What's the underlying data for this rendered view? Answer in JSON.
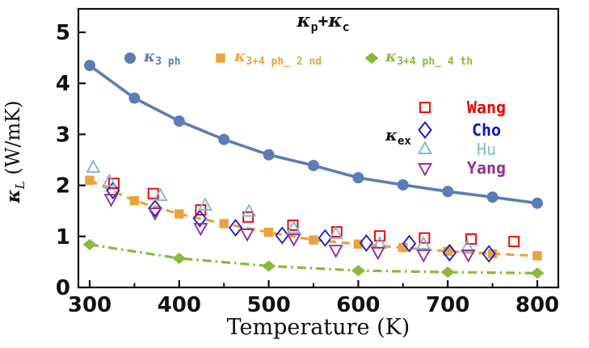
{
  "title": {
    "k1": "κ",
    "sub1": "p",
    "plus": "+",
    "k2": "κ",
    "sub2": "c"
  },
  "axes": {
    "x_label": "Temperature (K)",
    "y_symbol": "κ",
    "y_sub": "L",
    "y_units": " (W/mK)"
  },
  "legend_computed": [
    {
      "symbol": "κ",
      "sub": "3 ph",
      "marker": "circle",
      "color": "#5b7db5"
    },
    {
      "symbol": "κ",
      "sub": "3+4 ph_ 2 nd",
      "marker": "square",
      "color": "#e8a33c"
    },
    {
      "symbol": "κ",
      "sub": "3+4 ph_ 4 th",
      "marker": "diamond",
      "color": "#8db83c"
    }
  ],
  "legend_experimental": {
    "symbol": "κ",
    "sub": "ex",
    "entries": [
      {
        "name": "Wang",
        "marker": "square-open",
        "color": "#ee0000",
        "weight": "bold"
      },
      {
        "name": "Cho",
        "marker": "diamond-open",
        "color": "#1414cc",
        "weight": "bold"
      },
      {
        "name": "Hu",
        "marker": "triangle-up-open",
        "color": "#85b7d4",
        "weight": "normal"
      },
      {
        "name": "Yang",
        "marker": "triangle-down-open",
        "color": "#992d99",
        "weight": "bold"
      }
    ]
  },
  "chart_data": {
    "type": "line",
    "title": "κp+κc",
    "xlabel": "Temperature (K)",
    "ylabel": "κL (W/mK)",
    "xlim": [
      287,
      824
    ],
    "ylim": [
      0,
      5.45
    ],
    "x_major_ticks": [
      300,
      400,
      500,
      600,
      700,
      800
    ],
    "x_minor_ticks": [
      350,
      450,
      550,
      650,
      750
    ],
    "y_major_ticks": [
      0,
      1,
      2,
      3,
      4,
      5
    ],
    "grid": false,
    "legend_position": "inside-top",
    "series": [
      {
        "name": "κ3+4 ph_ 4 th",
        "kind": "line+markers",
        "marker": "diamond",
        "line": "dashdot",
        "color": "#8db83c",
        "x": [
          300,
          400,
          500,
          600,
          700,
          800
        ],
        "y": [
          0.84,
          0.57,
          0.42,
          0.33,
          0.3,
          0.28
        ]
      },
      {
        "name": "κ3+4 ph_ 2 nd",
        "kind": "line+markers",
        "marker": "square",
        "line": "dashed",
        "color": "#e8a33c",
        "x": [
          300,
          350,
          400,
          450,
          500,
          550,
          600,
          650,
          700,
          750,
          800
        ],
        "y": [
          2.1,
          1.7,
          1.44,
          1.25,
          1.08,
          0.93,
          0.85,
          0.78,
          0.71,
          0.66,
          0.62
        ]
      },
      {
        "name": "κ3 ph",
        "kind": "line+markers",
        "marker": "circle",
        "line": "solid",
        "color": "#5b7db5",
        "x": [
          300,
          350,
          400,
          450,
          500,
          550,
          600,
          650,
          700,
          750,
          800
        ],
        "y": [
          4.35,
          3.71,
          3.26,
          2.9,
          2.6,
          2.39,
          2.15,
          2.01,
          1.88,
          1.77,
          1.65
        ]
      },
      {
        "name": "Wang",
        "kind": "scatter",
        "marker": "square-open",
        "color": "#ee0000",
        "x": [
          327,
          371,
          424,
          477,
          527,
          576,
          624,
          674,
          726,
          774
        ],
        "y": [
          2.04,
          1.84,
          1.52,
          1.38,
          1.22,
          1.09,
          1.01,
          0.97,
          0.95,
          0.9
        ]
      },
      {
        "name": "Cho",
        "kind": "scatter",
        "marker": "diamond-open",
        "color": "#2222cc",
        "x": [
          326,
          373,
          423,
          463,
          515,
          563,
          609,
          657,
          702,
          746
        ],
        "y": [
          1.9,
          1.55,
          1.35,
          1.17,
          1.02,
          0.97,
          0.87,
          0.86,
          0.68,
          0.66
        ]
      },
      {
        "name": "Hu",
        "kind": "scatter",
        "marker": "triangle-up-open",
        "color": "#85b7d4",
        "x": [
          304,
          322,
          379,
          429,
          478,
          528,
          575,
          624,
          673,
          722
        ],
        "y": [
          2.34,
          2.07,
          1.79,
          1.6,
          1.48,
          1.15,
          1.04,
          0.85,
          0.84,
          0.78
        ]
      },
      {
        "name": "Yang",
        "kind": "scatter",
        "marker": "triangle-down-open",
        "color": "#992d99",
        "x": [
          324,
          373,
          424,
          476,
          528,
          575,
          622,
          673,
          723
        ],
        "y": [
          1.74,
          1.47,
          1.17,
          1.06,
          0.96,
          0.74,
          0.7,
          0.65,
          0.65
        ]
      }
    ]
  }
}
